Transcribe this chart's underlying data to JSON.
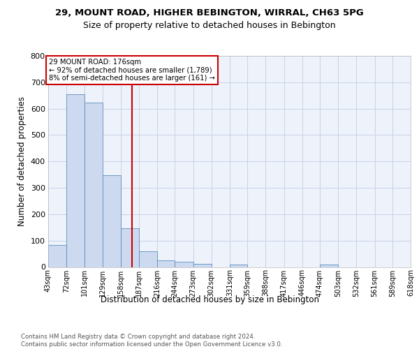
{
  "title_line1": "29, MOUNT ROAD, HIGHER BEBINGTON, WIRRAL, CH63 5PG",
  "title_line2": "Size of property relative to detached houses in Bebington",
  "xlabel": "Distribution of detached houses by size in Bebington",
  "ylabel": "Number of detached properties",
  "bar_fill": "#ccd9ee",
  "bar_edge": "#5b8fbe",
  "grid_color": "#c8d4e8",
  "vline_color": "#cc0000",
  "annotation_text": "29 MOUNT ROAD: 176sqm\n← 92% of detached houses are smaller (1,789)\n8% of semi-detached houses are larger (161) →",
  "annotation_box_edge": "#cc0000",
  "annotation_fill": "#ffffff",
  "property_size": 176,
  "bin_edges": [
    43,
    72,
    101,
    129,
    158,
    187,
    216,
    244,
    273,
    302,
    331,
    359,
    388,
    417,
    446,
    474,
    503,
    532,
    561,
    589,
    618
  ],
  "counts": [
    83,
    655,
    624,
    347,
    147,
    60,
    24,
    20,
    12,
    0,
    8,
    0,
    0,
    0,
    0,
    9,
    0,
    0,
    0,
    0
  ],
  "ylim": [
    0,
    800
  ],
  "yticks": [
    0,
    100,
    200,
    300,
    400,
    500,
    600,
    700,
    800
  ],
  "bg_color": "#edf2fb",
  "footer": "Contains HM Land Registry data © Crown copyright and database right 2024.\nContains public sector information licensed under the Open Government Licence v3.0."
}
